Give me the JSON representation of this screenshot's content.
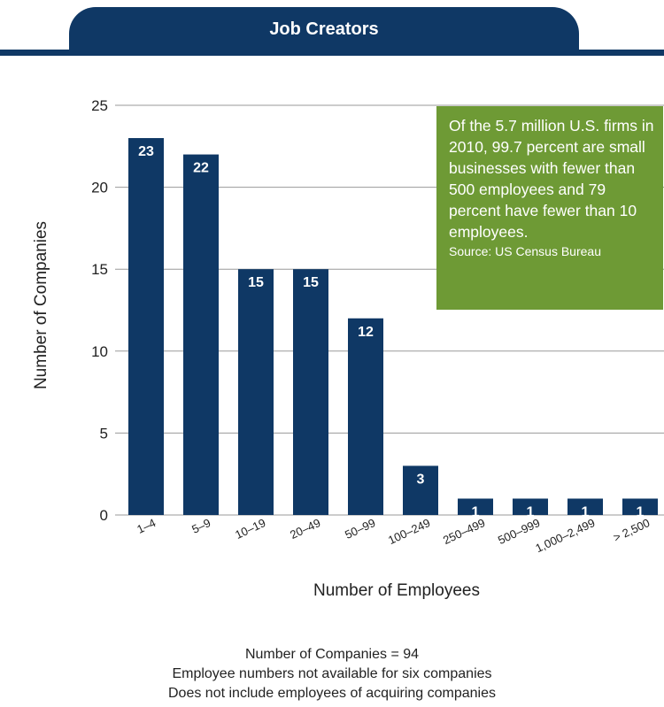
{
  "header": {
    "title": "Job Creators"
  },
  "colors": {
    "bar": "#0f3865",
    "callout": "#6e9a35",
    "gridline": "#9a9a9a"
  },
  "callout": {
    "text": "Of the 5.7 million U.S. firms in 2010, 99.7 percent are small businesses with fewer than 500 employees and 79 percent have fewer than 10 employees.",
    "source": "Source: US Census Bureau"
  },
  "chart_data": {
    "type": "bar",
    "categories": [
      "1–4",
      "5–9",
      "10–19",
      "20–49",
      "50–99",
      "100–249",
      "250–499",
      "500–999",
      "1,000–2,499",
      "> 2,500"
    ],
    "values": [
      23,
      22,
      15,
      15,
      12,
      3,
      1,
      1,
      1,
      1
    ],
    "xlabel": "Number of Employees",
    "ylabel": "Number of Companies",
    "ylim": [
      0,
      25
    ],
    "yticks": [
      0,
      5,
      10,
      15,
      20,
      25
    ],
    "grid": true
  },
  "footer": {
    "lines": [
      "Number of Companies = 94",
      "Employee numbers not available for six companies",
      "Does not include employees of acquiring companies"
    ]
  }
}
